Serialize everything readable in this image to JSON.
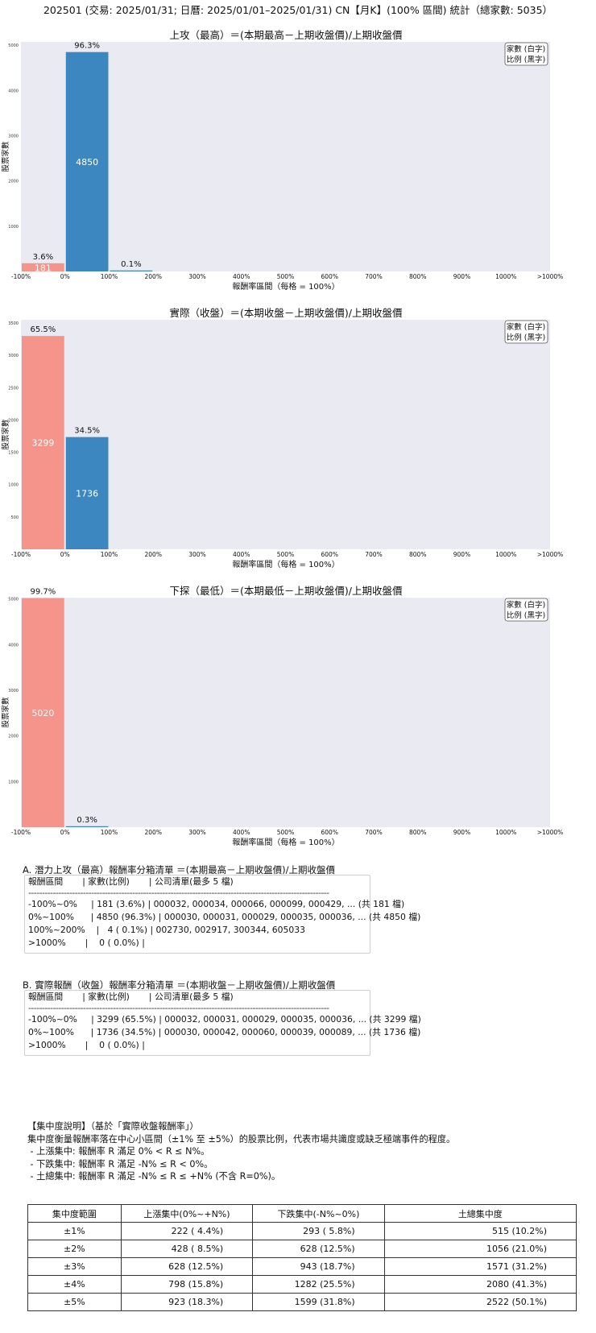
{
  "page_title": "202501 (交易: 2025/01/31; 日曆: 2025/01/01–2025/01/31) CN【月K】(100% 區間) 統計（總家數: 5035）",
  "legend": {
    "line1": "家數 (白字)",
    "line2": "比例 (黑字)"
  },
  "colors": {
    "negative": "#f4948a",
    "positive": "#3d87c0",
    "plot_bg": "#eaeaf2"
  },
  "chart_data": [
    {
      "type": "bar",
      "title": "上攻（最高）＝(本期最高－上期收盤價)/上期收盤價",
      "xlabel": "報酬率區間（每格 = 100%）",
      "ylabel": "股票家數",
      "x_ticks": [
        "-100%",
        "0%",
        "100%",
        "200%",
        "300%",
        "400%",
        "500%",
        "600%",
        "700%",
        "800%",
        "900%",
        "1000%",
        ">1000%"
      ],
      "y_ticks": [
        1000,
        2000,
        3000,
        4000,
        5000
      ],
      "ylim": [
        0,
        5075
      ],
      "bins": [
        {
          "count": 181,
          "pct": "3.6%",
          "count_label": "181",
          "color": "negative"
        },
        {
          "count": 4850,
          "pct": "96.3%",
          "count_label": "4850",
          "color": "positive"
        },
        {
          "count": 4,
          "pct": "0.1%",
          "count_label": "",
          "color": "positive"
        }
      ],
      "legend_position": "top-right"
    },
    {
      "type": "bar",
      "title": "實際（收盤）＝(本期收盤－上期收盤價)/上期收盤價",
      "xlabel": "報酬率區間（每格 = 100%）",
      "ylabel": "股票家數",
      "x_ticks": [
        "-100%",
        "0%",
        "100%",
        "200%",
        "300%",
        "400%",
        "500%",
        "600%",
        "700%",
        "800%",
        "900%",
        "1000%",
        ">1000%"
      ],
      "y_ticks": [
        500,
        1000,
        1500,
        2000,
        2500,
        3000,
        3500
      ],
      "ylim": [
        0,
        3550
      ],
      "bins": [
        {
          "count": 3299,
          "pct": "65.5%",
          "count_label": "3299",
          "color": "negative"
        },
        {
          "count": 1736,
          "pct": "34.5%",
          "count_label": "1736",
          "color": "positive"
        }
      ],
      "legend_position": "top-right"
    },
    {
      "type": "bar",
      "title": "下探（最低）＝(本期最低－上期收盤價)/上期收盤價",
      "xlabel": "報酬率區間（每格 = 100%）",
      "ylabel": "股票家數",
      "x_ticks": [
        "-100%",
        "0%",
        "100%",
        "200%",
        "300%",
        "400%",
        "500%",
        "600%",
        "700%",
        "800%",
        "900%",
        "1000%",
        ">1000%"
      ],
      "y_ticks": [
        1000,
        2000,
        3000,
        4000,
        5000
      ],
      "ylim": [
        0,
        5030
      ],
      "bins": [
        {
          "count": 5020,
          "pct": "99.7%",
          "count_label": "5020",
          "color": "negative"
        },
        {
          "count": 15,
          "pct": "0.3%",
          "count_label": "",
          "color": "positive"
        }
      ],
      "legend_position": "top-right"
    }
  ],
  "list_a": {
    "heading": "A. 潛力上攻（最高）報酬率分箱清單 ＝(本期最高－上期收盤價)/上期收盤價",
    "header": "報酬區間       | 家數(比例)       | 公司清單(最多 5 檔)",
    "divider": "--------------------------------------------------------------------------------------------------------------",
    "rows": [
      "-100%~0%     | 181 (3.6%) | 000032, 000034, 000066, 000099, 000429, ... (共 181 檔)",
      "0%~100%      | 4850 (96.3%) | 000030, 000031, 000029, 000035, 000036, ... (共 4850 檔)",
      "100%~200%    |   4 ( 0.1%) | 002730, 002917, 300344, 605033",
      ">1000%       |    0 ( 0.0%) |"
    ]
  },
  "list_b": {
    "heading": "B. 實際報酬（收盤）報酬率分箱清單 ＝(本期收盤－上期收盤價)/上期收盤價",
    "header": "報酬區間       | 家數(比例)       | 公司清單(最多 5 檔)",
    "divider": "--------------------------------------------------------------------------------------------------------------",
    "rows": [
      "-100%~0%     | 3299 (65.5%) | 000032, 000031, 000029, 000035, 000036, ... (共 3299 檔)",
      "0%~100%      | 1736 (34.5%) | 000030, 000042, 000060, 000039, 000089, ... (共 1736 檔)",
      ">1000%       |    0 ( 0.0%) |"
    ]
  },
  "concentration_note": {
    "heading": "【集中度說明】（基於「實際收盤報酬率」）",
    "desc": "集中度衡量報酬率落在中心小區間（±1% 至 ±5%）的股票比例，代表市場共識度或缺乏極端事件的程度。",
    "items": [
      " - 上漲集中: 報酬率 R 滿足 0% < R ≤ N%。",
      " - 下跌集中: 報酬率 R 滿足 -N% ≤ R < 0%。",
      " - 土總集中: 報酬率 R 滿足 -N% ≤ R ≤ +N% (不含 R=0%)。"
    ]
  },
  "concentration_table": {
    "headers": [
      "集中度範圍",
      "上漲集中(0%~+N%)",
      "下跌集中(-N%~0%)",
      "土總集中度"
    ],
    "rows": [
      [
        "±1%",
        "222 ( 4.4%)",
        "293 ( 5.8%)",
        "515 (10.2%)"
      ],
      [
        "±2%",
        "428 ( 8.5%)",
        "628 (12.5%)",
        "1056 (21.0%)"
      ],
      [
        "±3%",
        "628 (12.5%)",
        "943 (18.7%)",
        "1571 (31.2%)"
      ],
      [
        "±4%",
        "798 (15.8%)",
        "1282 (25.5%)",
        "2080 (41.3%)"
      ],
      [
        "±5%",
        "923 (18.3%)",
        "1599 (31.8%)",
        "2522 (50.1%)"
      ]
    ]
  }
}
